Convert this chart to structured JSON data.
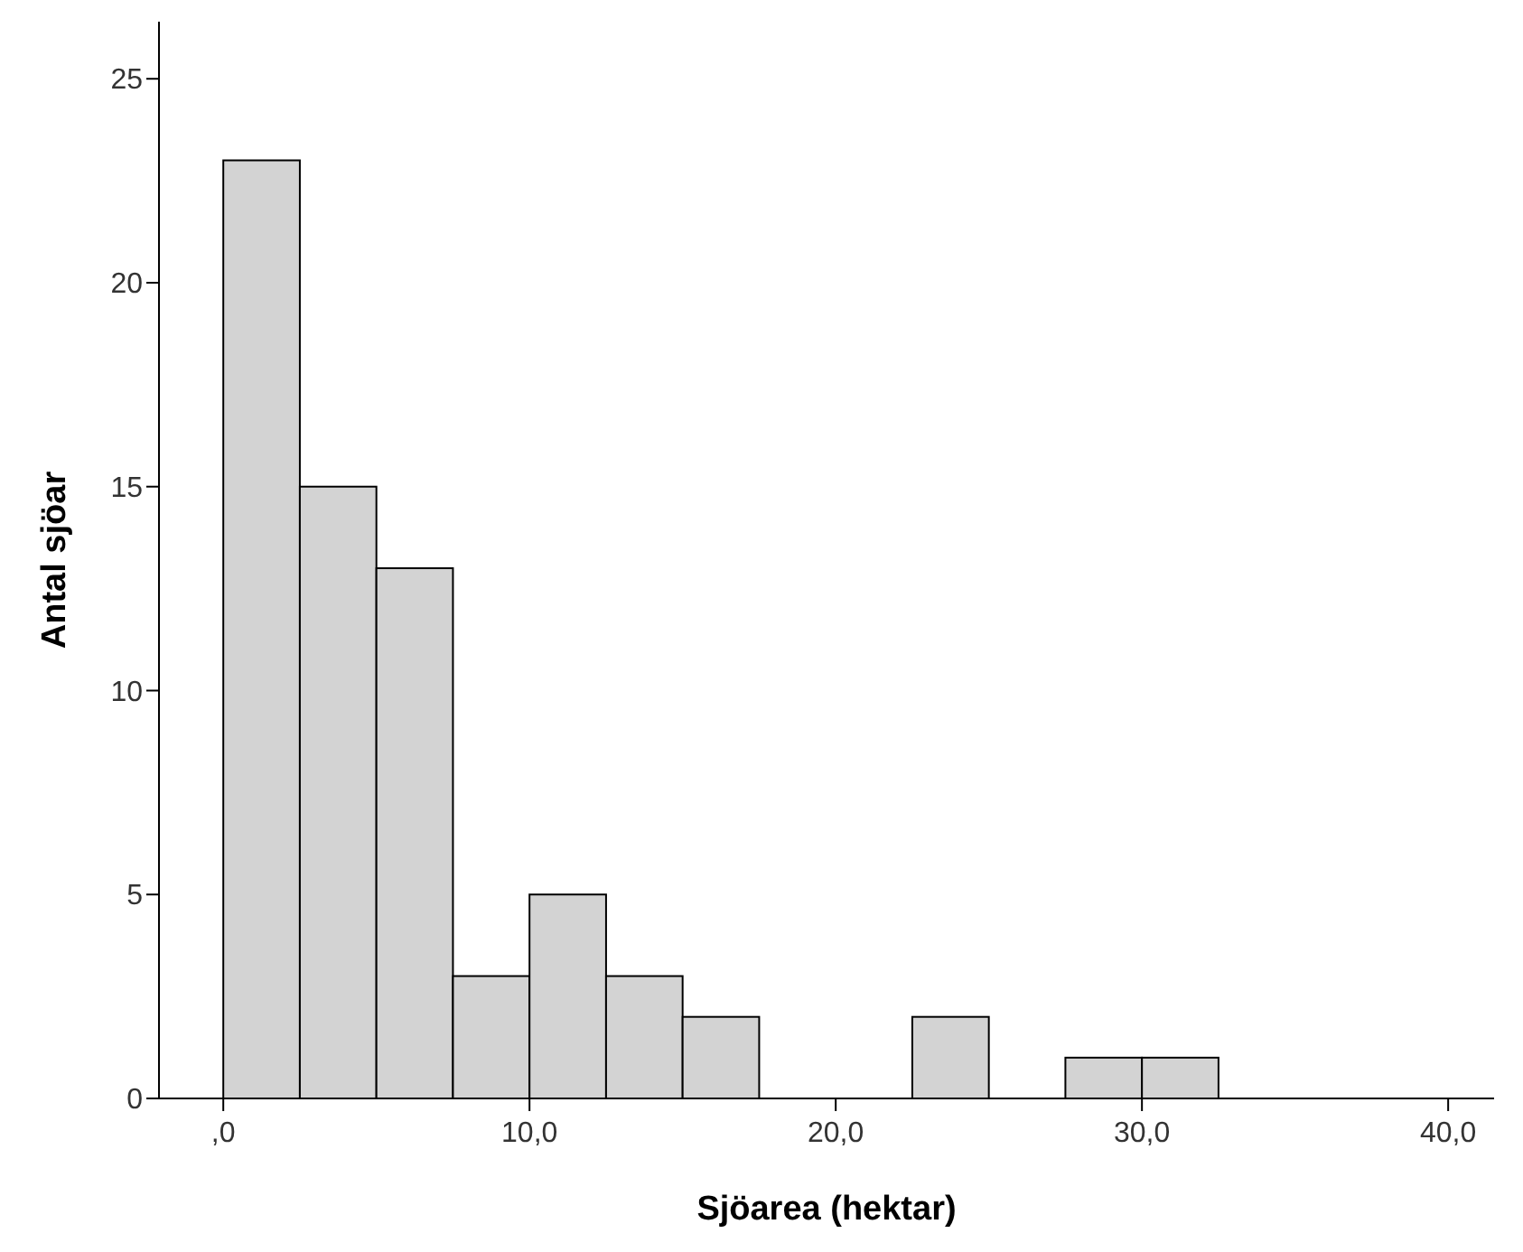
{
  "chart_data": {
    "type": "histogram",
    "xlabel": "Sjöarea (hektar)",
    "ylabel": "Antal sjöar",
    "bins": [
      0,
      2.5,
      5,
      7.5,
      10,
      12.5,
      15,
      17.5,
      20,
      22.5,
      25,
      27.5,
      30,
      32.5
    ],
    "values": [
      23,
      15,
      13,
      3,
      5,
      3,
      2,
      0,
      0,
      2,
      0,
      1,
      1
    ],
    "color": "#d3d3d3",
    "xlim": [
      -2.1,
      41.5
    ],
    "ylim": [
      0,
      26.4
    ],
    "xticks": [
      {
        "value": 0,
        "label": ",0"
      },
      {
        "value": 10,
        "label": "10,0"
      },
      {
        "value": 20,
        "label": "20,0"
      },
      {
        "value": 30,
        "label": "30,0"
      },
      {
        "value": 40,
        "label": "40,0"
      }
    ],
    "yticks": [
      0,
      5,
      10,
      15,
      20,
      25
    ],
    "grid": false
  }
}
